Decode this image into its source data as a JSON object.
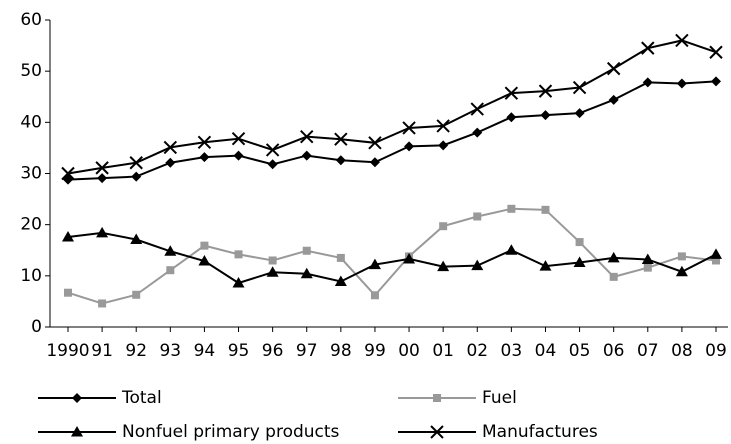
{
  "chart_data": {
    "type": "line",
    "categories": [
      "1990",
      "91",
      "92",
      "93",
      "94",
      "95",
      "96",
      "97",
      "98",
      "99",
      "00",
      "01",
      "02",
      "03",
      "04",
      "05",
      "06",
      "07",
      "08",
      "09"
    ],
    "ylim": [
      0,
      60
    ],
    "yticks": [
      0,
      10,
      20,
      30,
      40,
      50,
      60
    ],
    "legend": "bottom",
    "series": [
      {
        "name": "Total",
        "color": "#000000",
        "marker": "diamond",
        "values": [
          28.8,
          29.1,
          29.4,
          32.1,
          33.2,
          33.5,
          31.8,
          33.5,
          32.6,
          32.2,
          35.3,
          35.5,
          38.0,
          41.0,
          41.4,
          41.8,
          44.4,
          47.8,
          47.6,
          48.0
        ]
      },
      {
        "name": "Fuel",
        "color": "#999999",
        "marker": "square",
        "values": [
          6.7,
          4.6,
          6.3,
          11.1,
          15.9,
          14.2,
          13.0,
          14.9,
          13.5,
          6.2,
          13.8,
          19.7,
          21.6,
          23.1,
          22.9,
          16.6,
          9.8,
          11.6,
          13.8,
          13.0
        ]
      },
      {
        "name": "Nonfuel primary products",
        "color": "#000000",
        "marker": "triangle",
        "values": [
          17.6,
          18.4,
          17.1,
          14.8,
          12.9,
          8.6,
          10.7,
          10.4,
          8.9,
          12.2,
          13.3,
          11.8,
          12.0,
          15.0,
          11.9,
          12.6,
          13.5,
          13.2,
          10.8,
          14.2
        ]
      },
      {
        "name": "Manufactures",
        "color": "#000000",
        "marker": "x",
        "values": [
          30.0,
          31.1,
          32.1,
          35.1,
          36.1,
          36.8,
          34.6,
          37.2,
          36.7,
          36.0,
          38.9,
          39.3,
          42.6,
          45.7,
          46.1,
          46.8,
          50.5,
          54.5,
          56.0,
          53.7
        ]
      }
    ]
  }
}
